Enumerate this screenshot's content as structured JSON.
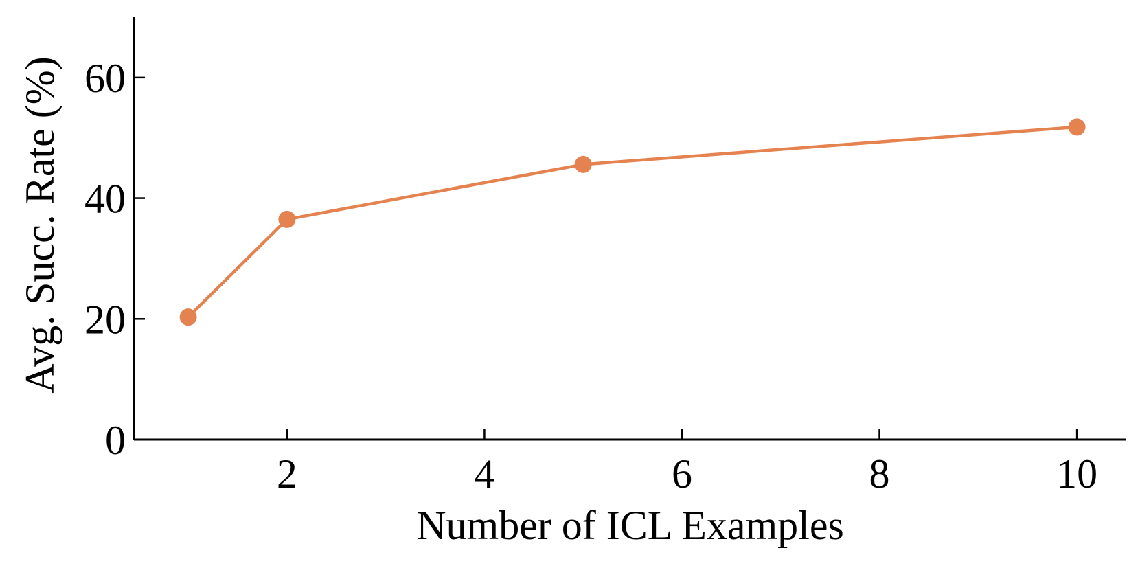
{
  "chart_data": {
    "type": "line",
    "title": "",
    "xlabel": "Number of ICL Examples",
    "ylabel": "Avg. Succ. Rate (%)",
    "xlim": [
      0.45,
      10.5
    ],
    "ylim": [
      0,
      70
    ],
    "x_ticks": [
      2,
      4,
      6,
      8,
      10
    ],
    "y_ticks": [
      0,
      20,
      40,
      60
    ],
    "grid": false,
    "legend": null,
    "series": [
      {
        "color": "#E4834F",
        "x": [
          1,
          2,
          5,
          10
        ],
        "y": [
          20.3,
          36.5,
          45.6,
          51.8
        ]
      }
    ]
  }
}
